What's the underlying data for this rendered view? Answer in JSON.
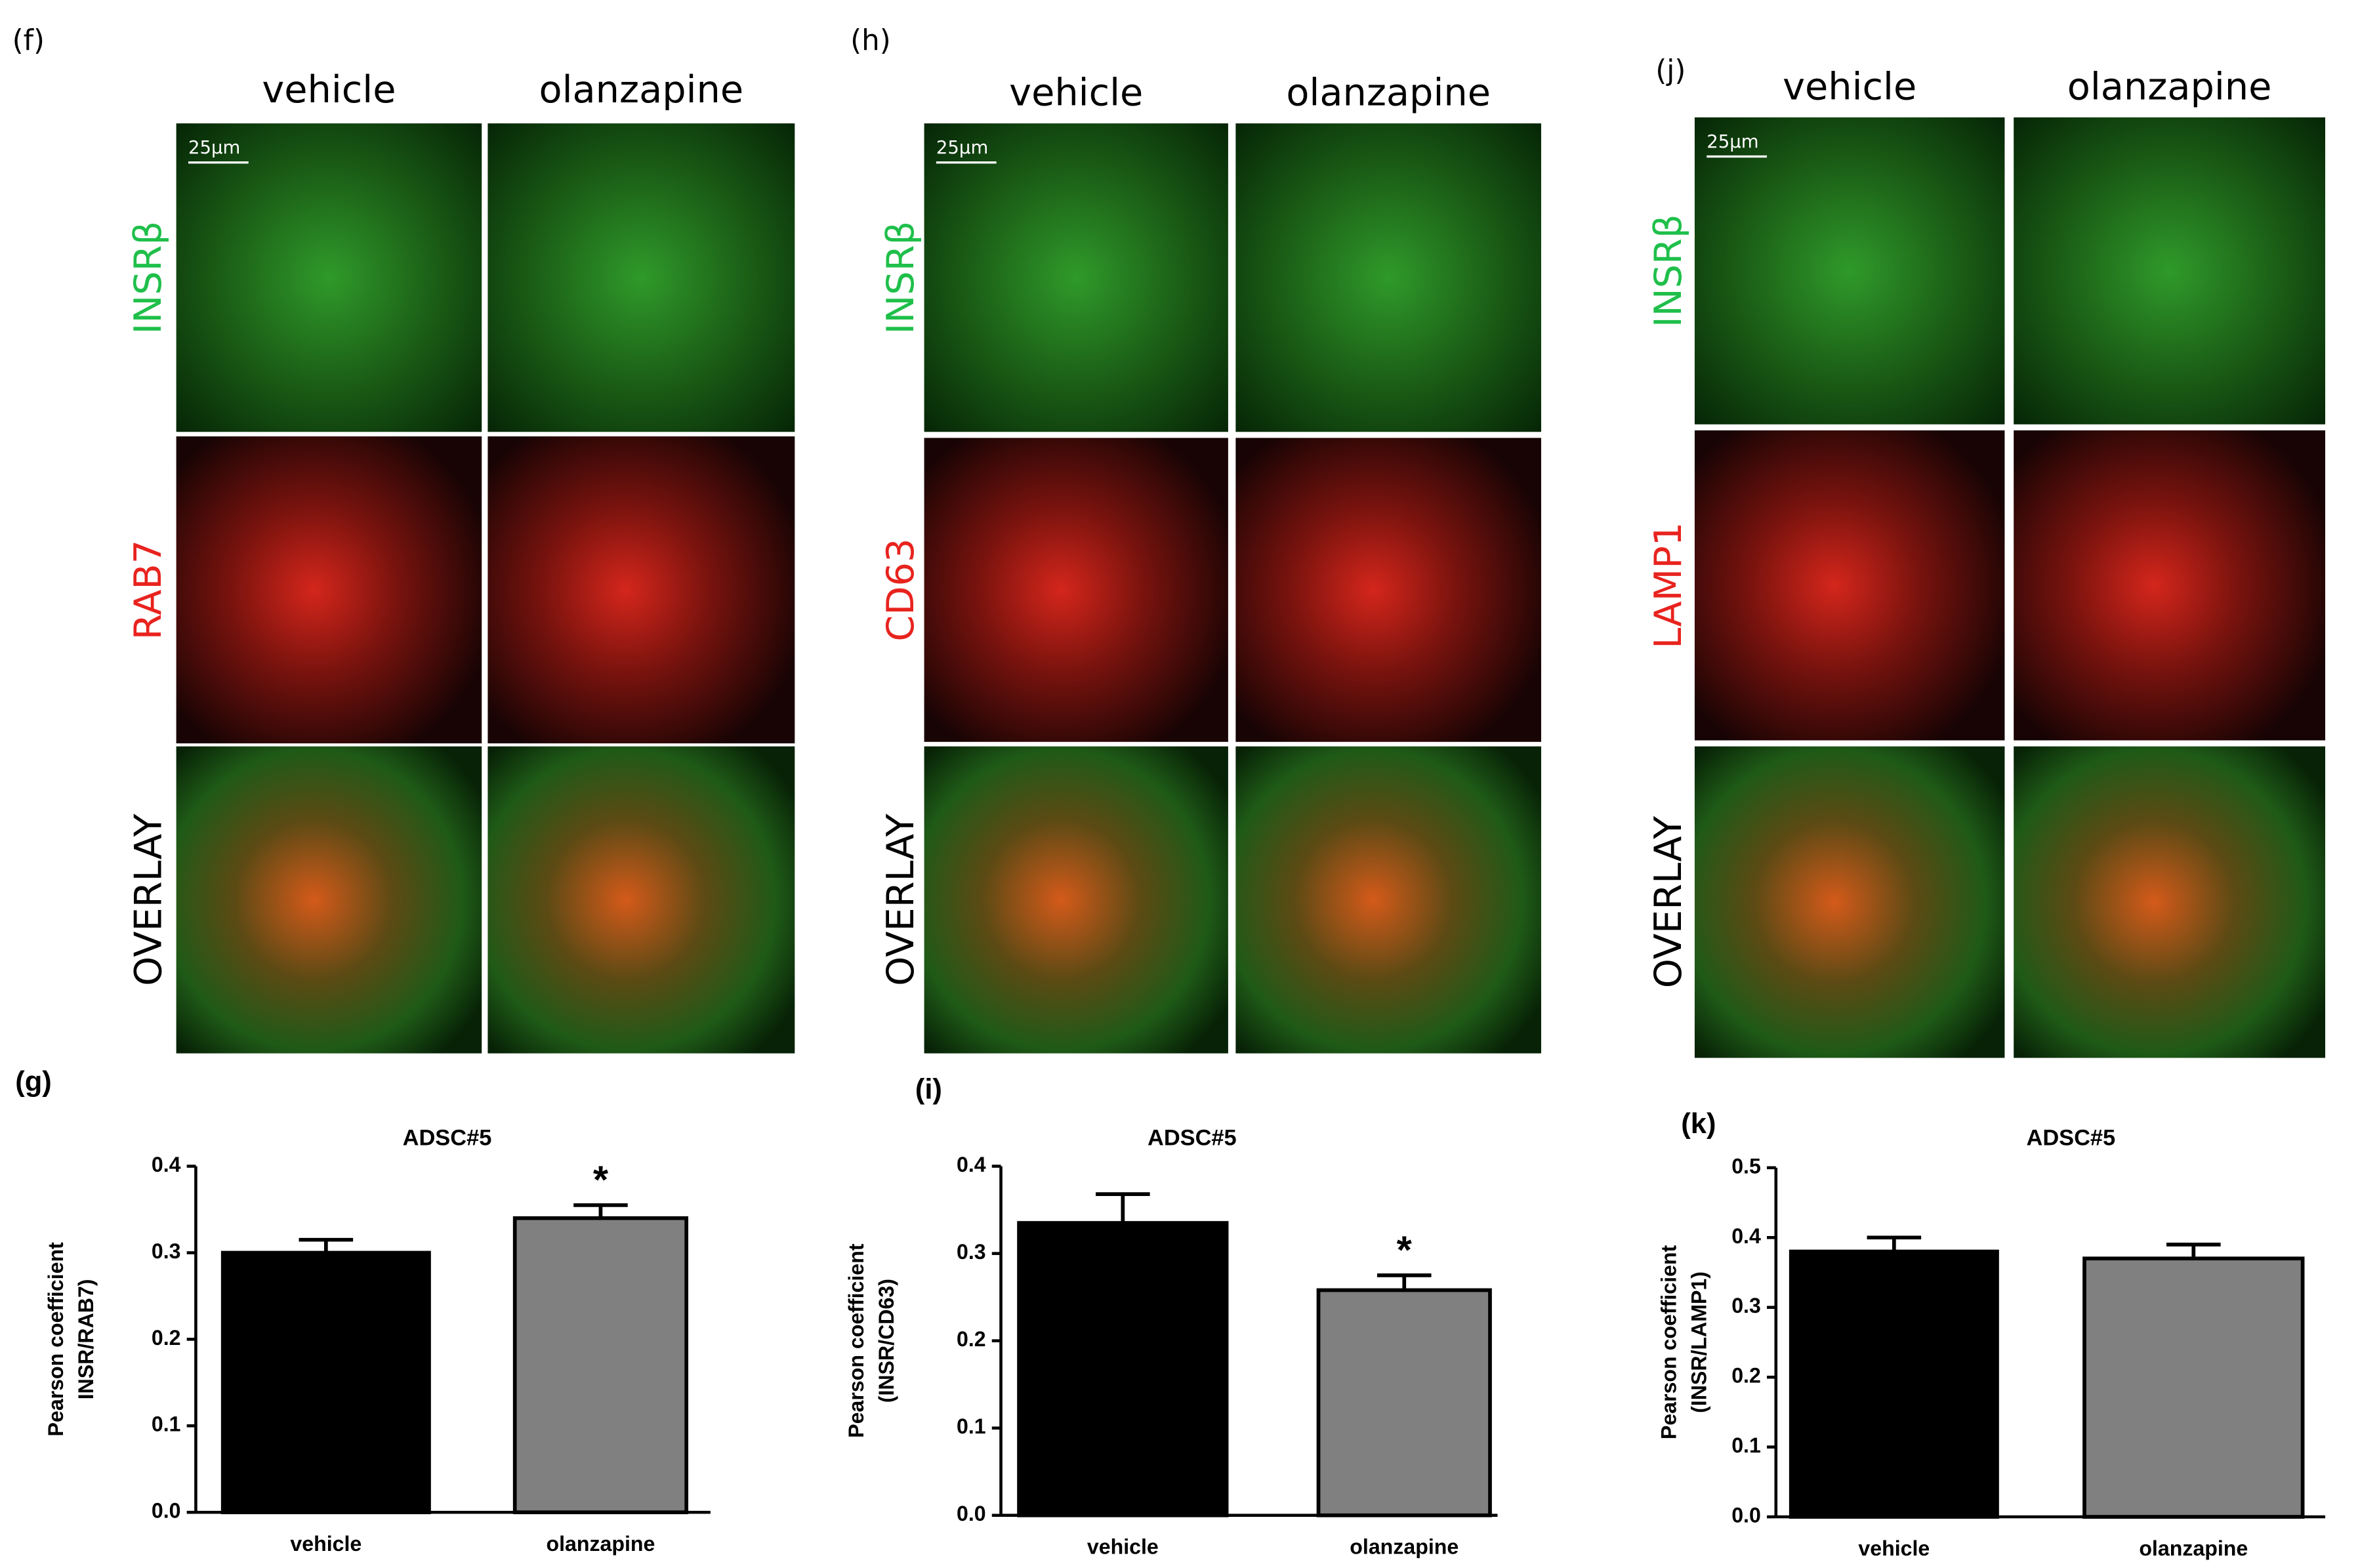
{
  "image_panels": [
    {
      "label": "(f)",
      "columns": [
        "vehicle",
        "olanzapine"
      ],
      "rows": [
        "INSRβ",
        "RAB7",
        "OVERLAY"
      ],
      "scale_bar": "25μm"
    },
    {
      "label": "(h)",
      "columns": [
        "vehicle",
        "olanzapine"
      ],
      "rows": [
        "INSRβ",
        "CD63",
        "OVERLAY"
      ],
      "scale_bar": "25μm"
    },
    {
      "label": "(j)",
      "columns": [
        "vehicle",
        "olanzapine"
      ],
      "rows": [
        "INSRβ",
        "LAMP1",
        "OVERLAY"
      ],
      "scale_bar": "25μm"
    }
  ],
  "chart_data": [
    {
      "type": "bar",
      "label": "(g)",
      "title": "ADSC#5",
      "y_label": [
        "Pearson coefficient",
        "INSR/RAB7)"
      ],
      "categories": [
        "vehicle",
        "olanzapine"
      ],
      "values": [
        0.3,
        0.34
      ],
      "errors": [
        0.015,
        0.015
      ],
      "colors": [
        "#000000",
        "#808080"
      ],
      "ylim": [
        0,
        0.4
      ],
      "yticks": [
        {
          "value": 0,
          "label": "0.0"
        },
        0.1,
        0.2,
        0.3,
        0.4
      ],
      "annotations": [
        {
          "category": "olanzapine",
          "text": "*"
        }
      ]
    },
    {
      "type": "bar",
      "label": "(i)",
      "title": "ADSC#5",
      "y_label": [
        "Pearson coefficient",
        "(INSR/CD63)"
      ],
      "categories": [
        "vehicle",
        "olanzapine"
      ],
      "values": [
        0.335,
        0.258
      ],
      "errors": [
        0.033,
        0.017
      ],
      "colors": [
        "#000000",
        "#808080"
      ],
      "ylim": [
        0,
        0.4
      ],
      "yticks": [
        {
          "value": 0,
          "label": "0.0"
        },
        0.1,
        0.2,
        0.3,
        0.4
      ],
      "annotations": [
        {
          "category": "olanzapine",
          "text": "*"
        }
      ]
    },
    {
      "type": "bar",
      "label": "(k)",
      "title": "ADSC#5",
      "y_label": [
        "Pearson coefficient",
        "(INSR/LAMP1)"
      ],
      "categories": [
        "vehicle",
        "olanzapine"
      ],
      "values": [
        0.38,
        0.37
      ],
      "errors": [
        0.02,
        0.02
      ],
      "colors": [
        "#000000",
        "#808080"
      ],
      "ylim": [
        0,
        0.5
      ],
      "yticks": [
        {
          "value": 0,
          "label": "0.0"
        },
        0.1,
        0.2,
        0.3,
        0.4,
        0.5
      ]
    }
  ]
}
